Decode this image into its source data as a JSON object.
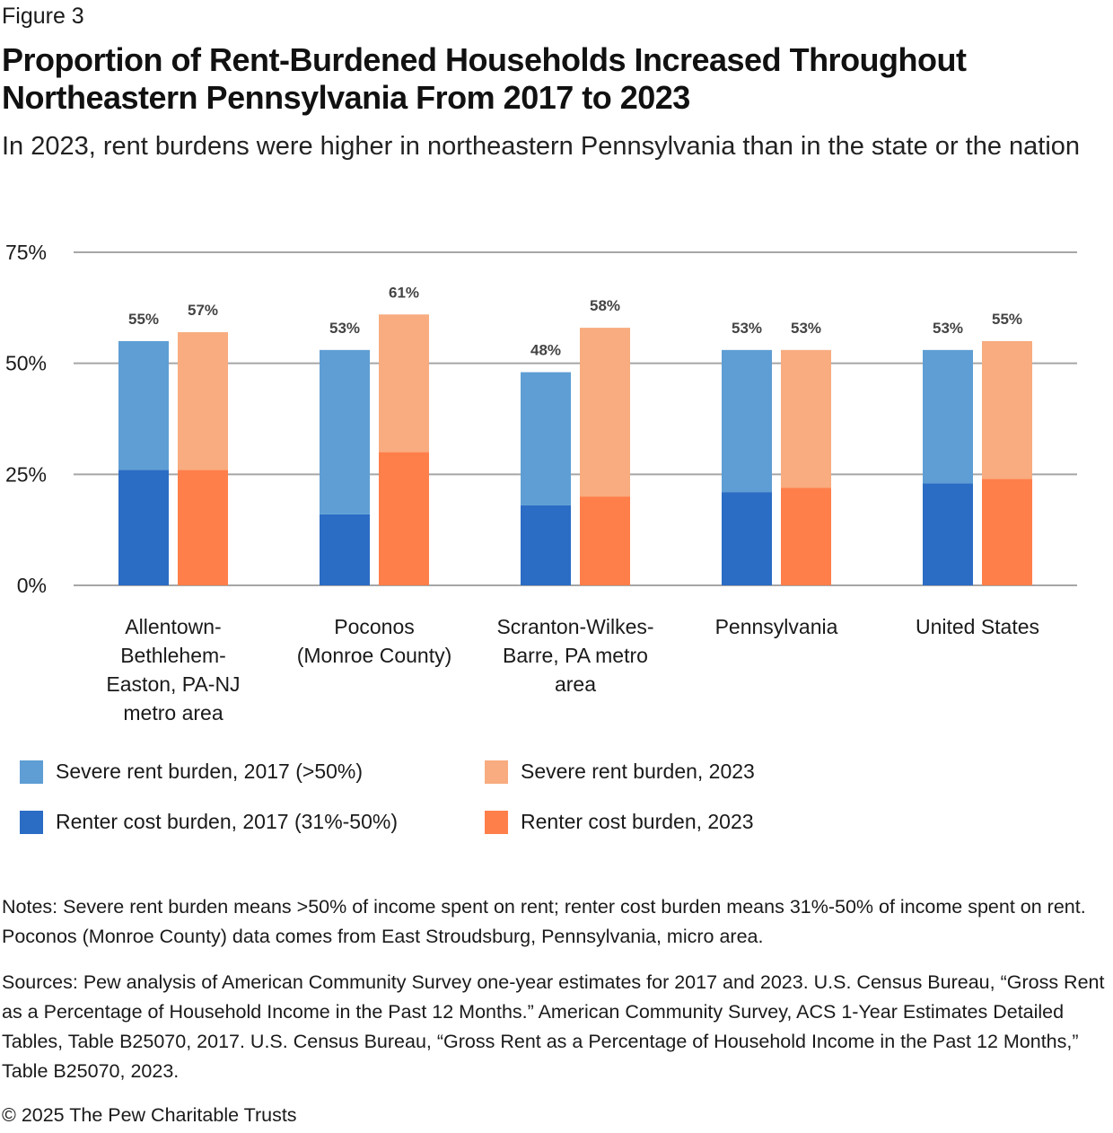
{
  "figure_label": "Figure 3",
  "title": "Proportion of Rent-Burdened Households Increased Throughout Northeastern Pennsylvania From 2017 to 2023",
  "subtitle": "In 2023, rent burdens were higher in northeastern Pennsylvania than in the state or the nation",
  "chart_data": {
    "type": "bar",
    "stacked": true,
    "title": "Proportion of Rent-Burdened Households Increased Throughout Northeastern Pennsylvania From 2017 to 2023",
    "xlabel": "",
    "ylabel": "",
    "ylim": [
      0,
      75
    ],
    "yticks": [
      0,
      25,
      50,
      75
    ],
    "ytick_labels": [
      "0%",
      "25%",
      "50%",
      "75%"
    ],
    "grid": true,
    "legend_position": "bottom",
    "categories": [
      "Allentown-Bethlehem-Easton, PA-NJ metro area",
      "Poconos (Monroe County)",
      "Scranton-Wilkes-Barre, PA metro area",
      "Pennsylvania",
      "United States"
    ],
    "category_lines": [
      [
        "Allentown-",
        "Bethlehem-",
        "Easton, PA-NJ",
        "metro area"
      ],
      [
        "Poconos",
        "(Monroe County)"
      ],
      [
        "Scranton-Wilkes-",
        "Barre, PA metro",
        "area"
      ],
      [
        "Pennsylvania"
      ],
      [
        "United States"
      ]
    ],
    "series": [
      {
        "name": "Renter cost burden, 2017 (31%-50%)",
        "year": "2017",
        "stack_level": "bottom",
        "color": "#2B6CC4",
        "values": [
          26,
          16,
          18,
          21,
          23
        ]
      },
      {
        "name": "Severe rent burden, 2017 (>50%)",
        "year": "2017",
        "stack_level": "top",
        "color": "#5E9ED4",
        "values": [
          29,
          37,
          30,
          32,
          30
        ]
      },
      {
        "name": "Renter cost burden, 2023",
        "year": "2023",
        "stack_level": "bottom",
        "color": "#FF7F4A",
        "values": [
          26,
          30,
          20,
          22,
          24
        ]
      },
      {
        "name": "Severe rent burden, 2023",
        "year": "2023",
        "stack_level": "top",
        "color": "#F8AC7F",
        "values": [
          31,
          31,
          38,
          31,
          31
        ]
      }
    ],
    "totals": {
      "2017": [
        55,
        53,
        48,
        53,
        53
      ],
      "2023": [
        57,
        61,
        58,
        53,
        55
      ]
    },
    "total_labels": {
      "2017": [
        "55%",
        "53%",
        "48%",
        "53%",
        "53%"
      ],
      "2023": [
        "57%",
        "61%",
        "58%",
        "53%",
        "55%"
      ]
    }
  },
  "legend": [
    {
      "label": "Severe rent burden, 2017 (>50%)",
      "color": "#5E9ED4"
    },
    {
      "label": "Severe rent burden, 2023",
      "color": "#F8AC7F"
    },
    {
      "label": "Renter cost burden, 2017 (31%-50%)",
      "color": "#2B6CC4"
    },
    {
      "label": "Renter cost burden, 2023",
      "color": "#FF7F4A"
    }
  ],
  "notes": "Notes: Severe rent burden means >50% of income spent on rent; renter cost burden means 31%-50% of income spent on rent. Poconos (Monroe County) data comes from East Stroudsburg, Pennsylvania, micro area.",
  "sources": "Sources: Pew analysis of American Community Survey one-year estimates for 2017 and 2023. U.S. Census Bureau, “Gross Rent as a Percentage of Household Income in the Past 12 Months.” American Community Survey, ACS 1-Year Estimates Detailed Tables, Table B25070, 2017. U.S. Census Bureau, “Gross Rent as a Percentage of Household Income in the Past 12 Months,” Table B25070, 2023.",
  "copyright": "© 2025 The Pew Charitable Trusts"
}
